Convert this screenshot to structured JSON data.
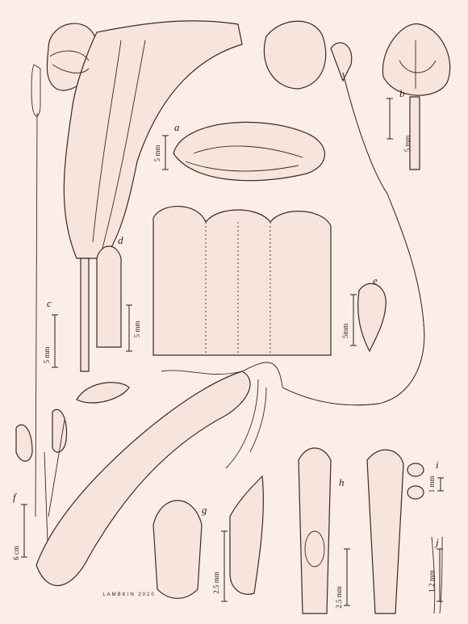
{
  "plate": {
    "panels": [
      {
        "label": "a",
        "scale": "5 mm"
      },
      {
        "label": "b",
        "scale": "5 mm"
      },
      {
        "label": "c",
        "scale": "5 mm"
      },
      {
        "label": "d",
        "scale": "5 mm"
      },
      {
        "label": "e",
        "scale": "5mm"
      },
      {
        "label": "f",
        "scale": "6 cm"
      },
      {
        "label": "g",
        "scale": "2.5 mm"
      },
      {
        "label": "h",
        "scale": "2.5 mm"
      },
      {
        "label": "i",
        "scale": "1 mm"
      },
      {
        "label": "j",
        "scale": "1.2 mm"
      }
    ],
    "signature": "LAMBKIN 2020"
  }
}
